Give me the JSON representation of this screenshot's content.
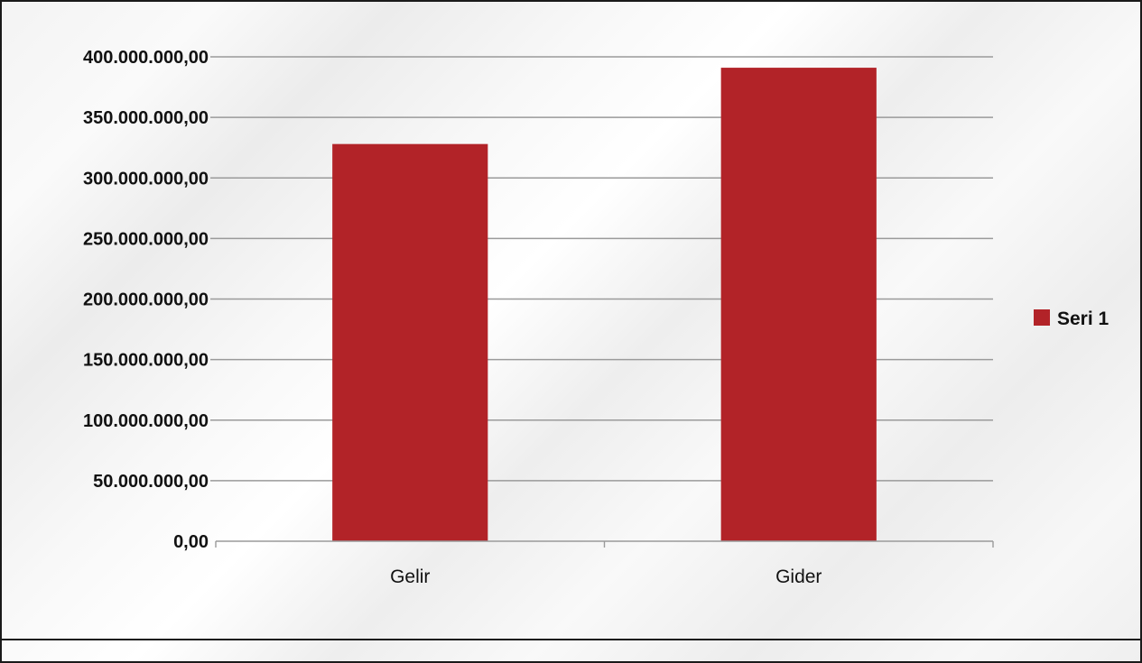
{
  "chart_data": {
    "type": "bar",
    "categories": [
      "Gelir",
      "Gider"
    ],
    "series": [
      {
        "name": "Seri 1",
        "values": [
          328000000,
          391000000
        ]
      }
    ],
    "y_ticks": [
      "0,00",
      "50.000.000,00",
      "100.000.000,00",
      "150.000.000,00",
      "200.000.000,00",
      "250.000.000,00",
      "300.000.000,00",
      "350.000.000,00",
      "400.000.000,00"
    ],
    "ylim": [
      0,
      400000000
    ],
    "y_step": 50000000,
    "grid": true,
    "legend_position": "right",
    "bar_color": "#b22328",
    "grid_color": "#9a9a9a"
  }
}
